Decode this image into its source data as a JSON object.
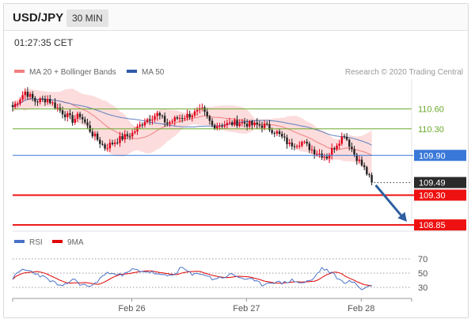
{
  "header": {
    "symbol": "USD/JPY",
    "timeframe": "30 MIN"
  },
  "timestamp": "01:27:35 CET",
  "legend": [
    {
      "label": "MA 20 + Bollinger Bands",
      "color": "#f08080"
    },
    {
      "label": "MA 50",
      "color": "#2e5aa7"
    }
  ],
  "copyright": "Research © 2020 Trading Central",
  "colors": {
    "up": "#e0001b",
    "down": "#222222",
    "ma20": "#f08080",
    "band": "#fbd6d6",
    "ma50": "#5f7fbf",
    "resistance": "#6aaa2a",
    "pivot": "#3a78d8",
    "support": "#ee1111",
    "arrow": "#2e5fa0",
    "rsi": "#4a72c8",
    "rsi_ma": "#e00000"
  },
  "chart_data": [
    {
      "type": "candlestick",
      "title": "",
      "xlabel": "",
      "ylabel": "",
      "ylim": [
        108.78,
        111.05
      ],
      "x_ticks": [
        "Feb 26",
        "Feb 27",
        "Feb 28"
      ],
      "levels": [
        {
          "value": 110.6,
          "label": "110.60",
          "kind": "resistance"
        },
        {
          "value": 110.3,
          "label": "110.30",
          "kind": "resistance"
        },
        {
          "value": 109.9,
          "label": "109.90",
          "kind": "pivot"
        },
        {
          "value": 109.3,
          "label": "109.30",
          "kind": "support"
        },
        {
          "value": 108.85,
          "label": "108.85",
          "kind": "support"
        }
      ],
      "last_price": {
        "value": 109.49,
        "label": "109.49"
      },
      "projection": {
        "from": 109.45,
        "to": 108.9
      },
      "series": [
        {
          "name": "MA 20 + Bollinger Bands",
          "kind": "ma20_bands"
        },
        {
          "name": "MA 50",
          "kind": "ma50"
        }
      ],
      "close_anchors": [
        [
          0,
          110.63
        ],
        [
          5,
          110.86
        ],
        [
          9,
          110.72
        ],
        [
          14,
          110.75
        ],
        [
          19,
          110.58
        ],
        [
          24,
          110.43
        ],
        [
          27,
          110.51
        ],
        [
          32,
          110.22
        ],
        [
          37,
          110.02
        ],
        [
          43,
          110.15
        ],
        [
          48,
          110.23
        ],
        [
          53,
          110.43
        ],
        [
          58,
          110.52
        ],
        [
          62,
          110.38
        ],
        [
          66,
          110.46
        ],
        [
          71,
          110.51
        ],
        [
          76,
          110.58
        ],
        [
          80,
          110.35
        ],
        [
          86,
          110.37
        ],
        [
          91,
          110.4
        ],
        [
          96,
          110.36
        ],
        [
          101,
          110.35
        ],
        [
          106,
          110.24
        ],
        [
          111,
          110.06
        ],
        [
          116,
          110.1
        ],
        [
          121,
          109.96
        ],
        [
          126,
          109.88
        ],
        [
          130,
          110.08
        ],
        [
          133,
          110.22
        ],
        [
          137,
          109.92
        ],
        [
          141,
          109.7
        ],
        [
          144,
          109.49
        ]
      ]
    },
    {
      "type": "line",
      "title": "",
      "legend": [
        "RSI",
        "9MA"
      ],
      "ylim": [
        20,
        80
      ],
      "y_ticks": [
        70,
        50,
        30
      ],
      "rsi_anchors": [
        [
          0,
          43
        ],
        [
          4,
          55
        ],
        [
          8,
          52
        ],
        [
          12,
          45
        ],
        [
          16,
          38
        ],
        [
          20,
          30
        ],
        [
          24,
          42
        ],
        [
          28,
          33
        ],
        [
          32,
          32
        ],
        [
          36,
          46
        ],
        [
          40,
          52
        ],
        [
          44,
          46
        ],
        [
          48,
          55
        ],
        [
          52,
          53
        ],
        [
          56,
          51
        ],
        [
          60,
          46
        ],
        [
          64,
          47
        ],
        [
          68,
          58
        ],
        [
          72,
          47
        ],
        [
          76,
          50
        ],
        [
          80,
          42
        ],
        [
          84,
          44
        ],
        [
          88,
          48
        ],
        [
          92,
          43
        ],
        [
          96,
          40
        ],
        [
          100,
          34
        ],
        [
          104,
          38
        ],
        [
          108,
          36
        ],
        [
          112,
          40
        ],
        [
          116,
          36
        ],
        [
          120,
          40
        ],
        [
          124,
          57
        ],
        [
          128,
          50
        ],
        [
          132,
          38
        ],
        [
          136,
          38
        ],
        [
          140,
          28
        ],
        [
          144,
          33
        ]
      ]
    }
  ]
}
